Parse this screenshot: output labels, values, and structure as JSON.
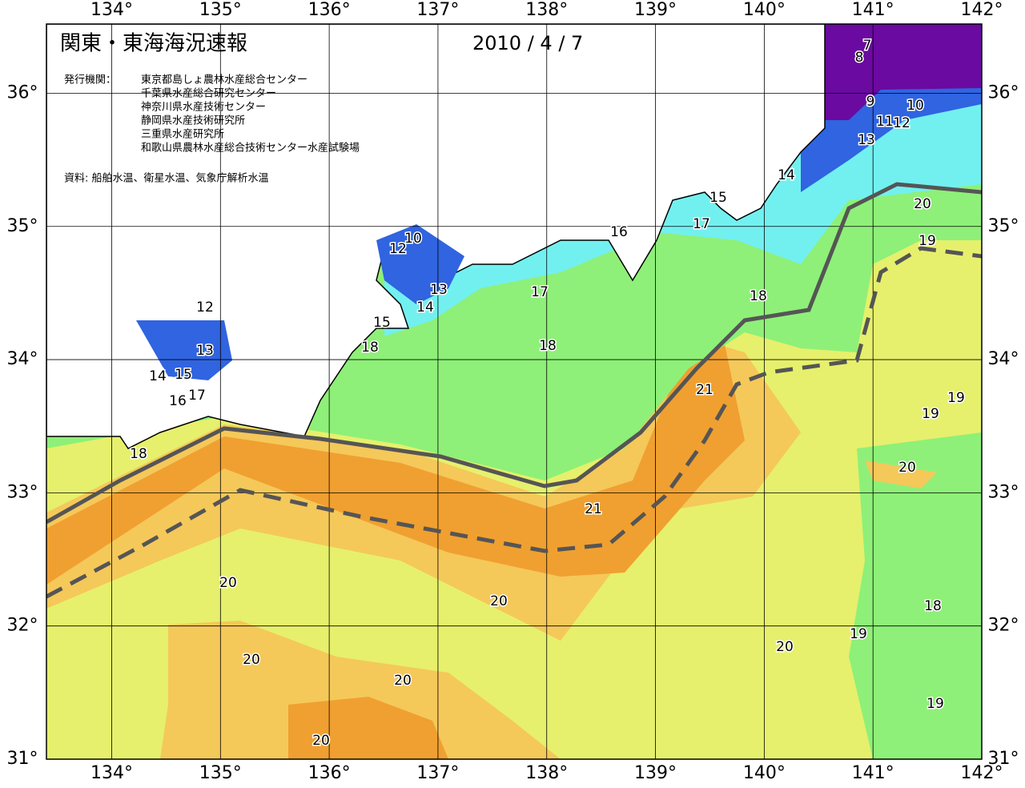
{
  "header": {
    "title": "関東・東海海況速報",
    "date": "2010 / 4 / 7",
    "publisher_label": "発行機関：",
    "publishers": [
      "東京都島しょ農林水産総合センター",
      "千葉県水産総合研究センター",
      "神奈川県水産技術センター",
      "静岡県水産技術研究所",
      "三重県水産研究所",
      "和歌山県農林水産総合技術センター水産試験場"
    ],
    "source": "資料: 船舶水温、衛星水温、気象庁解析水温"
  },
  "map": {
    "xlim": [
      133.4,
      142
    ],
    "ylim": [
      31,
      36.52
    ],
    "xticks": [
      {
        "value": 134,
        "label": "134°"
      },
      {
        "value": 135,
        "label": "135°"
      },
      {
        "value": 136,
        "label": "136°"
      },
      {
        "value": 137,
        "label": "137°"
      },
      {
        "value": 138,
        "label": "138°"
      },
      {
        "value": 139,
        "label": "139°"
      },
      {
        "value": 140,
        "label": "140°"
      },
      {
        "value": 141,
        "label": "141°"
      },
      {
        "value": 142,
        "label": "142°"
      }
    ],
    "yticks": [
      {
        "value": 31,
        "label": "31°"
      },
      {
        "value": 32,
        "label": "32°"
      },
      {
        "value": 33,
        "label": "33°"
      },
      {
        "value": 34,
        "label": "34°"
      },
      {
        "value": 35,
        "label": "35°"
      },
      {
        "value": 36,
        "label": "36°"
      }
    ]
  },
  "contour_labels": [
    "7",
    "8",
    "9",
    "10",
    "11",
    "12",
    "13",
    "14",
    "15",
    "20",
    "16",
    "17",
    "19",
    "12",
    "10",
    "13",
    "14",
    "15",
    "17",
    "18",
    "12",
    "13",
    "18",
    "18",
    "14",
    "15",
    "16",
    "17",
    "21",
    "19",
    "19",
    "18",
    "20",
    "21",
    "20",
    "20",
    "18",
    "19",
    "20",
    "20",
    "20",
    "19",
    "20"
  ]
}
